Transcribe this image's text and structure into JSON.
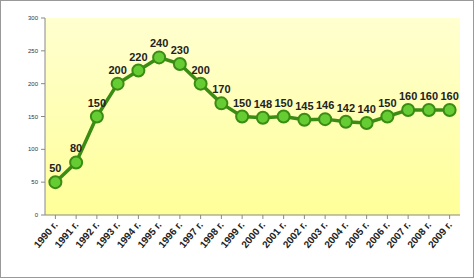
{
  "chart_data": {
    "type": "line",
    "categories": [
      "1990 г.",
      "1991 г.",
      "1992 г.",
      "1993 г.",
      "1994 г.",
      "1995 г.",
      "1996 г.",
      "1997 г.",
      "1998 г.",
      "1999 г.",
      "2000 г.",
      "2001 г.",
      "2002 г.",
      "2003 г.",
      "2004 г.",
      "2005 г.",
      "2006 г.",
      "2007 г.",
      "2008 г.",
      "2009 г."
    ],
    "values": [
      50,
      80,
      150,
      200,
      220,
      240,
      230,
      200,
      170,
      150,
      148,
      150,
      145,
      146,
      142,
      140,
      150,
      160,
      160,
      160
    ],
    "color": "#3a8c12",
    "marker": "circle",
    "ylim": [
      0,
      300
    ],
    "yticks": [
      0,
      50,
      100,
      150,
      200,
      250,
      300
    ],
    "grid": false,
    "data_labels": true
  }
}
